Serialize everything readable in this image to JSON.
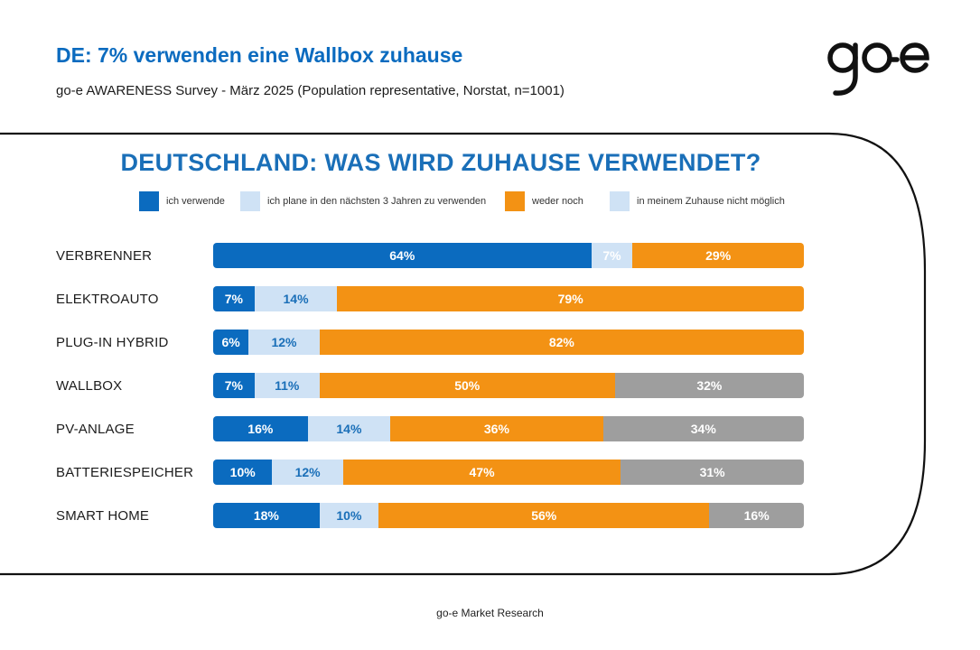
{
  "header": {
    "title": "DE: 7% verwenden eine Wallbox zuhause",
    "subtitle": "go-e AWARENESS Survey - März 2025 (Population representative, Norstat, n=1001)",
    "logo_text": "go-e"
  },
  "footer": {
    "text": "go-e Market Research"
  },
  "colors": {
    "ich verwende": "#0b6bbf",
    "ich plane": "#cfe2f5",
    "weder noch": "#f39214",
    "nicht möglich": "#9e9e9e"
  },
  "chart_data": {
    "type": "bar",
    "orientation": "horizontal",
    "stacked": true,
    "title": "DEUTSCHLAND: WAS WIRD ZUHAUSE VERWENDET?",
    "legend_position": "top",
    "legend": [
      {
        "label": "ich verwende",
        "color": "#0b6bbf"
      },
      {
        "label": "ich plane in den nächsten 3 Jahren zu verwenden",
        "color": "#cfe2f5"
      },
      {
        "label": "weder noch",
        "color": "#f39214"
      },
      {
        "label": "in meinem Zuhause nicht möglich",
        "color": "#cfe2f5"
      }
    ],
    "categories": [
      "VERBRENNER",
      "ELEKTROAUTO",
      "PLUG-IN HYBRID",
      "WALLBOX",
      "PV-ANLAGE",
      "BATTERIESPEICHER",
      "SMART HOME"
    ],
    "series": [
      {
        "name": "ich verwende",
        "color": "#0b6bbf",
        "label_color": "#ffffff",
        "values": [
          64,
          7,
          6,
          7,
          16,
          10,
          18
        ]
      },
      {
        "name": "ich plane in den nächsten 3 Jahren zu verwenden",
        "color": "#cfe2f5",
        "label_color": "#1a6fb8",
        "values": [
          7,
          14,
          12,
          11,
          14,
          12,
          10
        ]
      },
      {
        "name": "weder noch",
        "color": "#f39214",
        "label_color": "#ffffff",
        "values": [
          29,
          79,
          82,
          50,
          36,
          47,
          56
        ]
      },
      {
        "name": "in meinem Zuhause nicht möglich",
        "color": "#9e9e9e",
        "label_color": "#ffffff",
        "values": [
          0,
          0,
          0,
          32,
          34,
          31,
          16
        ]
      }
    ],
    "value_format": "{v}%"
  }
}
